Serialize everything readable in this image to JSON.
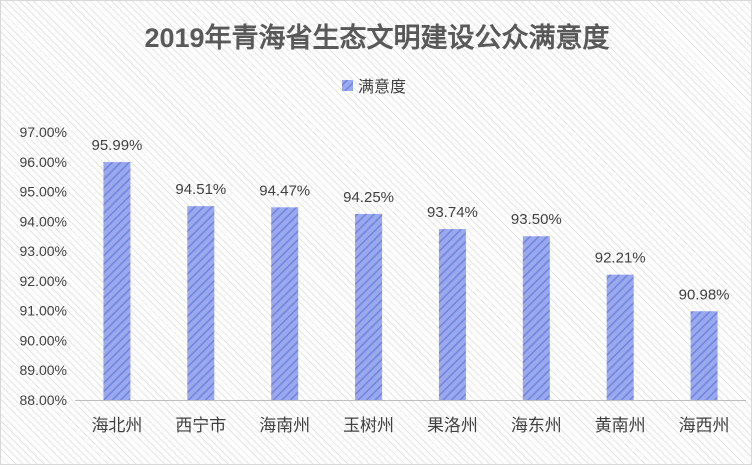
{
  "chart_data": {
    "type": "bar",
    "title": "2019年青海省生态文明建设公众满意度",
    "legend_position": "top",
    "series": [
      {
        "name": "满意度",
        "color": "#7b8fe6",
        "values": [
          95.99,
          94.51,
          94.47,
          94.25,
          93.74,
          93.5,
          92.21,
          90.98
        ],
        "labels": [
          "95.99%",
          "94.51%",
          "94.47%",
          "94.25%",
          "93.74%",
          "93.50%",
          "92.21%",
          "90.98%"
        ]
      }
    ],
    "categories": [
      "海北州",
      "西宁市",
      "海南州",
      "玉树州",
      "果洛州",
      "海东州",
      "黄南州",
      "海西州"
    ],
    "ylim": [
      88,
      97
    ],
    "yticks": [
      "88.00%",
      "89.00%",
      "90.00%",
      "91.00%",
      "92.00%",
      "93.00%",
      "94.00%",
      "95.00%",
      "96.00%",
      "97.00%"
    ],
    "grid": false
  }
}
